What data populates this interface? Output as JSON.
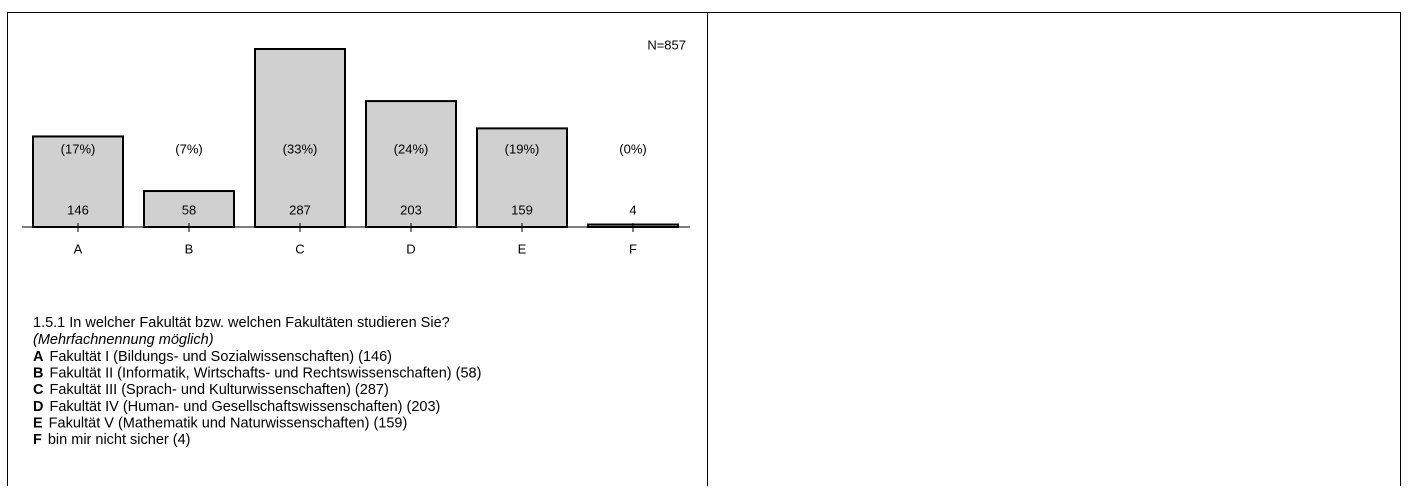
{
  "chart_data": {
    "type": "bar",
    "note": "N=857",
    "categories": [
      "A",
      "B",
      "C",
      "D",
      "E",
      "F"
    ],
    "values": [
      146,
      58,
      287,
      203,
      159,
      4
    ],
    "percent_labels": [
      "(17%)",
      "(7%)",
      "(33%)",
      "(24%)",
      "(19%)",
      "(0%)"
    ],
    "color": "#d0d0d0",
    "question": "1.5.1 In welcher Fakultät bzw. welchen Fakultäten studieren Sie?",
    "hint": "(Mehrfachnennung möglich)",
    "legend": [
      {
        "key": "A",
        "text": "Fakultät I (Bildungs- und Sozialwissenschaften) (146)"
      },
      {
        "key": "B",
        "text": "Fakultät II (Informatik, Wirtschafts- und Rechtswissenschaften) (58)"
      },
      {
        "key": "C",
        "text": "Fakultät III (Sprach- und Kulturwissenschaften) (287)"
      },
      {
        "key": "D",
        "text": "Fakultät IV (Human- und Gesellschaftswissenschaften) (203)"
      },
      {
        "key": "E",
        "text": "Fakultät V (Mathematik und Naturwissenschaften) (159)"
      },
      {
        "key": "F",
        "text": "bin mir nicht sicher (4)"
      }
    ]
  }
}
